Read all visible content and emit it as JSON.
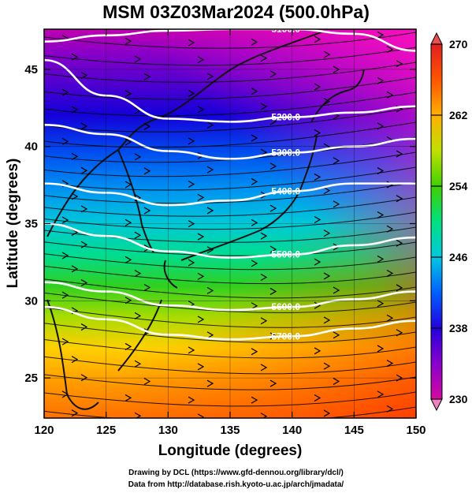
{
  "title": "MSM 03Z03Mar2024 (500.0hPa)",
  "xaxis": {
    "label": "Longitude (degrees)",
    "range": [
      120,
      150
    ],
    "ticks": [
      120,
      125,
      130,
      135,
      140,
      145,
      150
    ]
  },
  "yaxis": {
    "label": "Latitude  (degrees)",
    "range": [
      22.4,
      47.6
    ],
    "ticks": [
      25,
      30,
      35,
      40,
      45
    ]
  },
  "colorbar": {
    "range": [
      230,
      270
    ],
    "ticks": [
      230,
      238,
      246,
      254,
      262,
      270
    ],
    "colors": [
      "#d40aa0",
      "#8a00cc",
      "#2200dd",
      "#0060ff",
      "#00c8e0",
      "#00e080",
      "#40d000",
      "#c0e000",
      "#ffb000",
      "#ff5500",
      "#e02020"
    ]
  },
  "contours": [
    {
      "label": "5100.0",
      "lat_at": [
        46.8,
        47.2,
        47.5,
        47.6,
        47.6,
        47.3,
        46.2
      ]
    },
    {
      "label": "5200.0",
      "lat_at": [
        45.6,
        43.3,
        41.8,
        41.6,
        41.9,
        42.2,
        42.6
      ]
    },
    {
      "label": "5300.0",
      "lat_at": [
        41.4,
        40.8,
        39.7,
        39.2,
        39.6,
        40.0,
        40.5
      ]
    },
    {
      "label": "5400.0",
      "lat_at": [
        37.6,
        37.0,
        36.2,
        36.5,
        37.1,
        37.6,
        37.6
      ]
    },
    {
      "label": "5500.0",
      "lat_at": [
        35.0,
        34.2,
        33.2,
        32.8,
        33.0,
        33.6,
        34.1
      ]
    },
    {
      "label": "5600.0",
      "lat_at": [
        31.2,
        30.6,
        29.7,
        29.4,
        29.6,
        30.1,
        30.6
      ]
    },
    {
      "label": "5700.0",
      "lat_at": [
        29.6,
        28.8,
        27.8,
        27.5,
        27.7,
        28.2,
        28.7
      ]
    }
  ],
  "credits": {
    "line1": "Drawing by DCL (https://www.gfd-dennou.org/library/dcl/)",
    "line2": "Data from http://database.rish.kyoto-u.ac.jp/arch/jmadata/"
  }
}
